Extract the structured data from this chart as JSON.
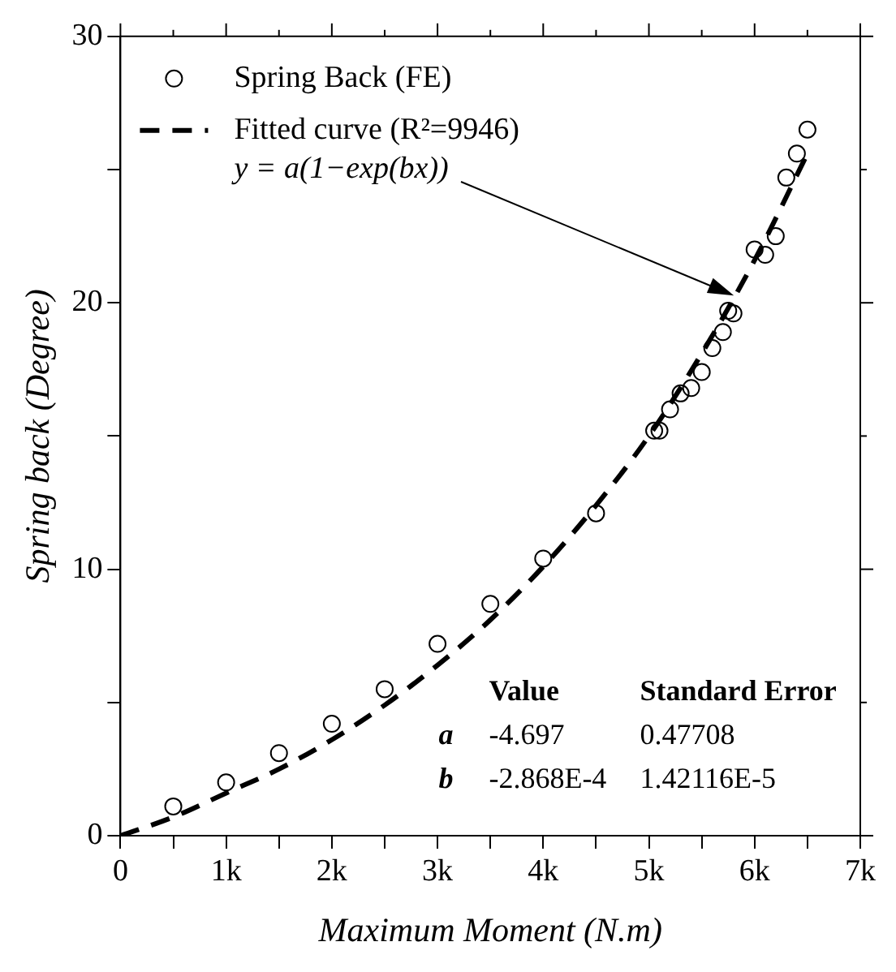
{
  "chart_data": {
    "type": "scatter",
    "xlabel": "Maximum Moment (N.m)",
    "ylabel": "Spring back (Degree)",
    "x": [
      500,
      1000,
      1500,
      2000,
      2500,
      3000,
      3500,
      4000,
      4500,
      5050,
      5100,
      5200,
      5300,
      5400,
      5500,
      5600,
      5700,
      5750,
      5800,
      6000,
      6100,
      6200,
      6300,
      6400,
      6500
    ],
    "series": [
      {
        "name": "Spring Back (FE)",
        "marker": "circle",
        "color": "#000000",
        "values": [
          1.1,
          2.0,
          3.1,
          4.2,
          5.5,
          7.2,
          8.7,
          10.4,
          12.1,
          15.2,
          15.2,
          16.0,
          16.6,
          16.8,
          17.4,
          18.3,
          18.9,
          19.7,
          19.6,
          22.0,
          21.8,
          22.5,
          24.7,
          25.6,
          26.5
        ]
      },
      {
        "name": "Fitted curve (R²=9946)",
        "type": "line",
        "line_style": "dashed",
        "marker": "none",
        "color": "#000000",
        "x": [
          0,
          500,
          1000,
          1500,
          2000,
          2500,
          3000,
          3500,
          4000,
          4500,
          5000,
          5500,
          6000,
          6500
        ],
        "values": [
          0,
          0.7,
          1.6,
          2.5,
          3.6,
          4.9,
          6.4,
          8.1,
          10.1,
          12.4,
          15.0,
          18.1,
          21.6,
          25.6
        ]
      }
    ],
    "annotations": [
      "y = a(1−exp(bx))",
      "Value",
      "Standard Error",
      "a",
      "-4.697",
      "0.47708",
      "b",
      "-2.868E-4",
      "1.42116E-5"
    ],
    "xlim": [
      0,
      7000
    ],
    "ylim": [
      0,
      30
    ],
    "xticks": [
      0,
      {
        "value": 500,
        "label": null
      },
      {
        "value": 1000,
        "label": "1k"
      },
      {
        "value": 1500,
        "label": null
      },
      {
        "value": 2000,
        "label": "2k"
      },
      {
        "value": 2500,
        "label": null
      },
      {
        "value": 3000,
        "label": "3k"
      },
      {
        "value": 3500,
        "label": null
      },
      {
        "value": 4000,
        "label": "4k"
      },
      {
        "value": 4500,
        "label": null
      },
      {
        "value": 5000,
        "label": "5k"
      },
      {
        "value": 5500,
        "label": null
      },
      {
        "value": 6000,
        "label": "6k"
      },
      {
        "value": 6500,
        "label": null
      },
      {
        "value": 7000,
        "label": "7k"
      }
    ],
    "yticks": [
      0,
      {
        "value": 5,
        "label": null
      },
      10,
      {
        "value": 15,
        "label": null
      },
      20,
      {
        "value": 25,
        "label": null
      },
      30
    ],
    "grid": false,
    "legend": "top left"
  }
}
